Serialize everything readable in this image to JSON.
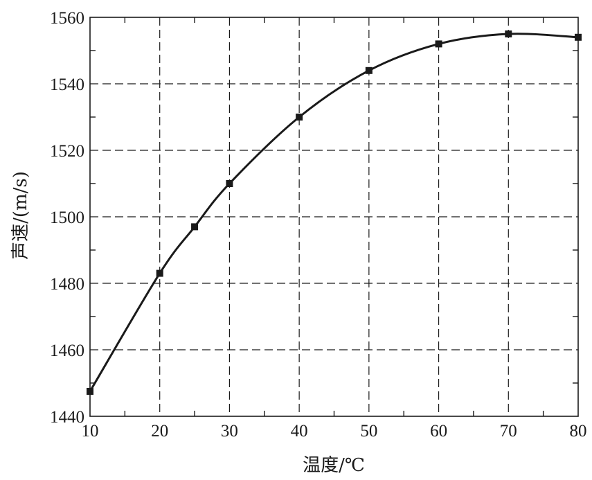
{
  "chart_data": {
    "type": "line",
    "xlabel": "温度/℃",
    "ylabel": "声速/(m/s)",
    "xlim": [
      10,
      80
    ],
    "ylim": [
      1440,
      1560
    ],
    "x_ticks": [
      10,
      20,
      30,
      40,
      50,
      60,
      70,
      80
    ],
    "x_minor_ticks": [
      15,
      25,
      35,
      45,
      55,
      65,
      75
    ],
    "y_ticks": [
      1440,
      1460,
      1480,
      1500,
      1520,
      1540,
      1560
    ],
    "y_minor_ticks": [
      1450,
      1470,
      1490,
      1510,
      1530,
      1550
    ],
    "grid": true,
    "grid_style": "dashed",
    "series": [
      {
        "marker": "square",
        "color": "#1a1a1a",
        "points": [
          {
            "x": 10,
            "y": 1447.5
          },
          {
            "x": 20,
            "y": 1483
          },
          {
            "x": 25,
            "y": 1497
          },
          {
            "x": 30,
            "y": 1510
          },
          {
            "x": 40,
            "y": 1530
          },
          {
            "x": 50,
            "y": 1544
          },
          {
            "x": 60,
            "y": 1552
          },
          {
            "x": 70,
            "y": 1555
          },
          {
            "x": 80,
            "y": 1554
          }
        ]
      }
    ]
  }
}
